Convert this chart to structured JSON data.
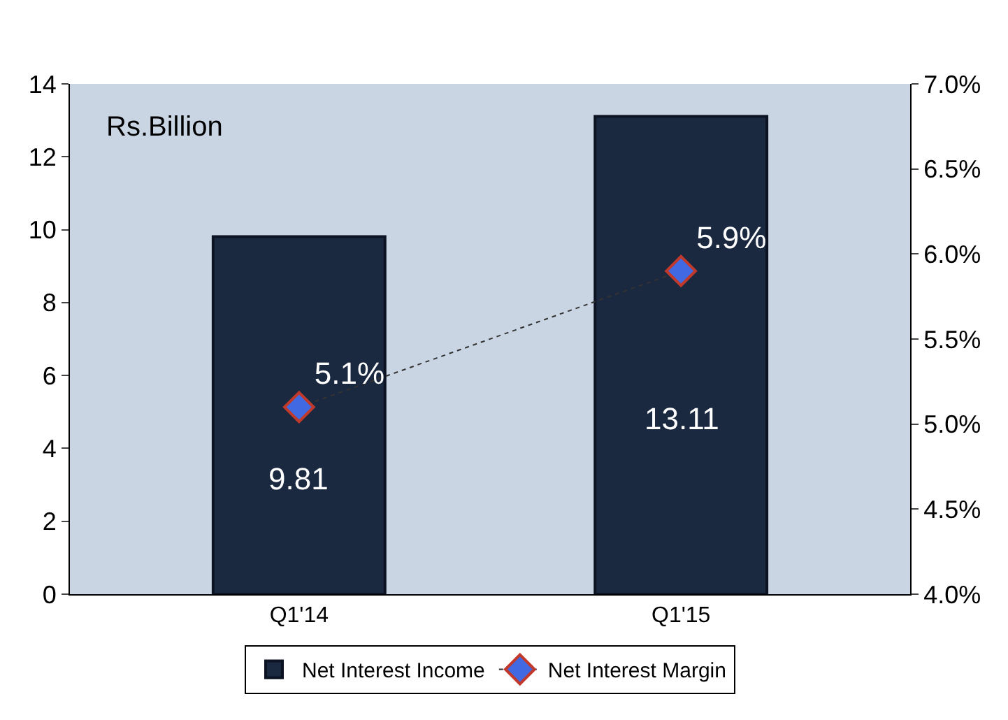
{
  "chart_data": {
    "type": "bar",
    "categories": [
      "Q1'14",
      "Q1'15"
    ],
    "series": [
      {
        "name": "Net Interest Income",
        "color": "#1b2940",
        "values": [
          9.81,
          13.11
        ],
        "value_labels": [
          "9.81",
          "13.11"
        ]
      },
      {
        "name": "Net Interest Margin",
        "type": "line",
        "axis": "y2",
        "color": "#4169e1",
        "values": [
          5.1,
          5.9
        ],
        "value_labels": [
          "5.1%",
          "5.9%"
        ]
      }
    ],
    "ylim": [
      0,
      14
    ],
    "yticks": [
      0,
      2,
      4,
      6,
      8,
      10,
      12,
      14
    ],
    "y2lim": [
      4.0,
      7.0
    ],
    "y2ticks": [
      {
        "value": 4.0,
        "label": "4.0%"
      },
      {
        "value": 4.5,
        "label": "4.5%"
      },
      {
        "value": 5.0,
        "label": "5.0%"
      },
      {
        "value": 5.5,
        "label": "5.5%"
      },
      {
        "value": 6.0,
        "label": "6.0%"
      },
      {
        "value": 6.5,
        "label": "6.5%"
      },
      {
        "value": 7.0,
        "label": "7.0%"
      }
    ],
    "annotations": [
      "Rs.Billion"
    ],
    "legend": "bottom",
    "grid": false,
    "marker": "diamond",
    "line_style": "dotted"
  }
}
